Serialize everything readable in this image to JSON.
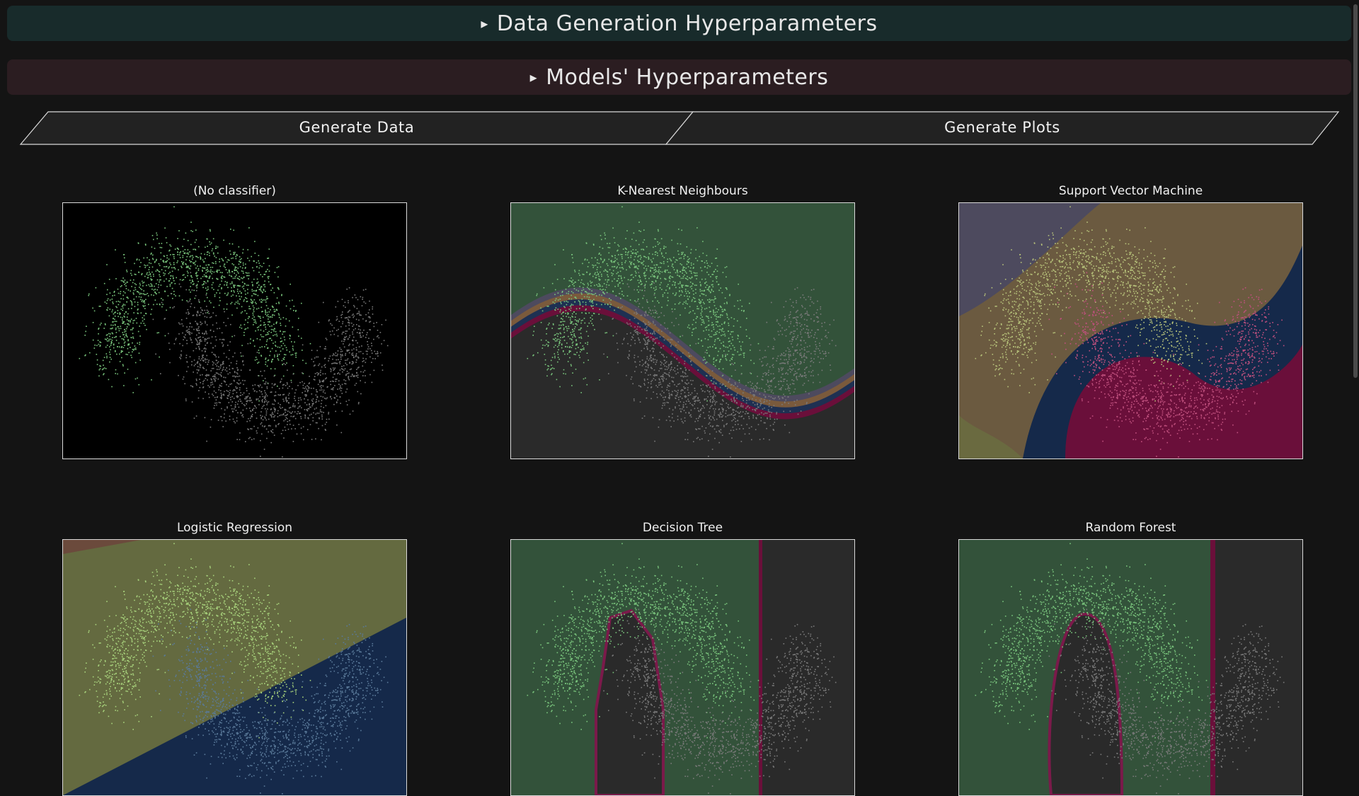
{
  "accordions": {
    "data_generation": {
      "label": "Data Generation Hyperparameters",
      "arrow": "▸"
    },
    "models": {
      "label": "Models' Hyperparameters",
      "arrow": "▸"
    }
  },
  "buttons": {
    "generate_data": "Generate Data",
    "generate_plots": "Generate Plots"
  },
  "plots": {
    "no_classifier": {
      "title": "(No classifier)",
      "background": "#000000"
    },
    "knn": {
      "title": "K-Nearest Neighbours",
      "background": "#33523a"
    },
    "svm": {
      "title": "Support Vector Machine",
      "background": "#6b5a40"
    },
    "logistic_regression": {
      "title": "Logistic Regression",
      "background": "#646a40"
    },
    "decision_tree": {
      "title": "Decision Tree",
      "background": "#33523a"
    },
    "random_forest": {
      "title": "Random Forest",
      "background": "#33523a"
    }
  },
  "colors": {
    "class_0": "#79c47c",
    "class_1": "#7a7a7a",
    "accordion_data_bg": "#182b2b",
    "accordion_models_bg": "#2b1d21"
  }
}
